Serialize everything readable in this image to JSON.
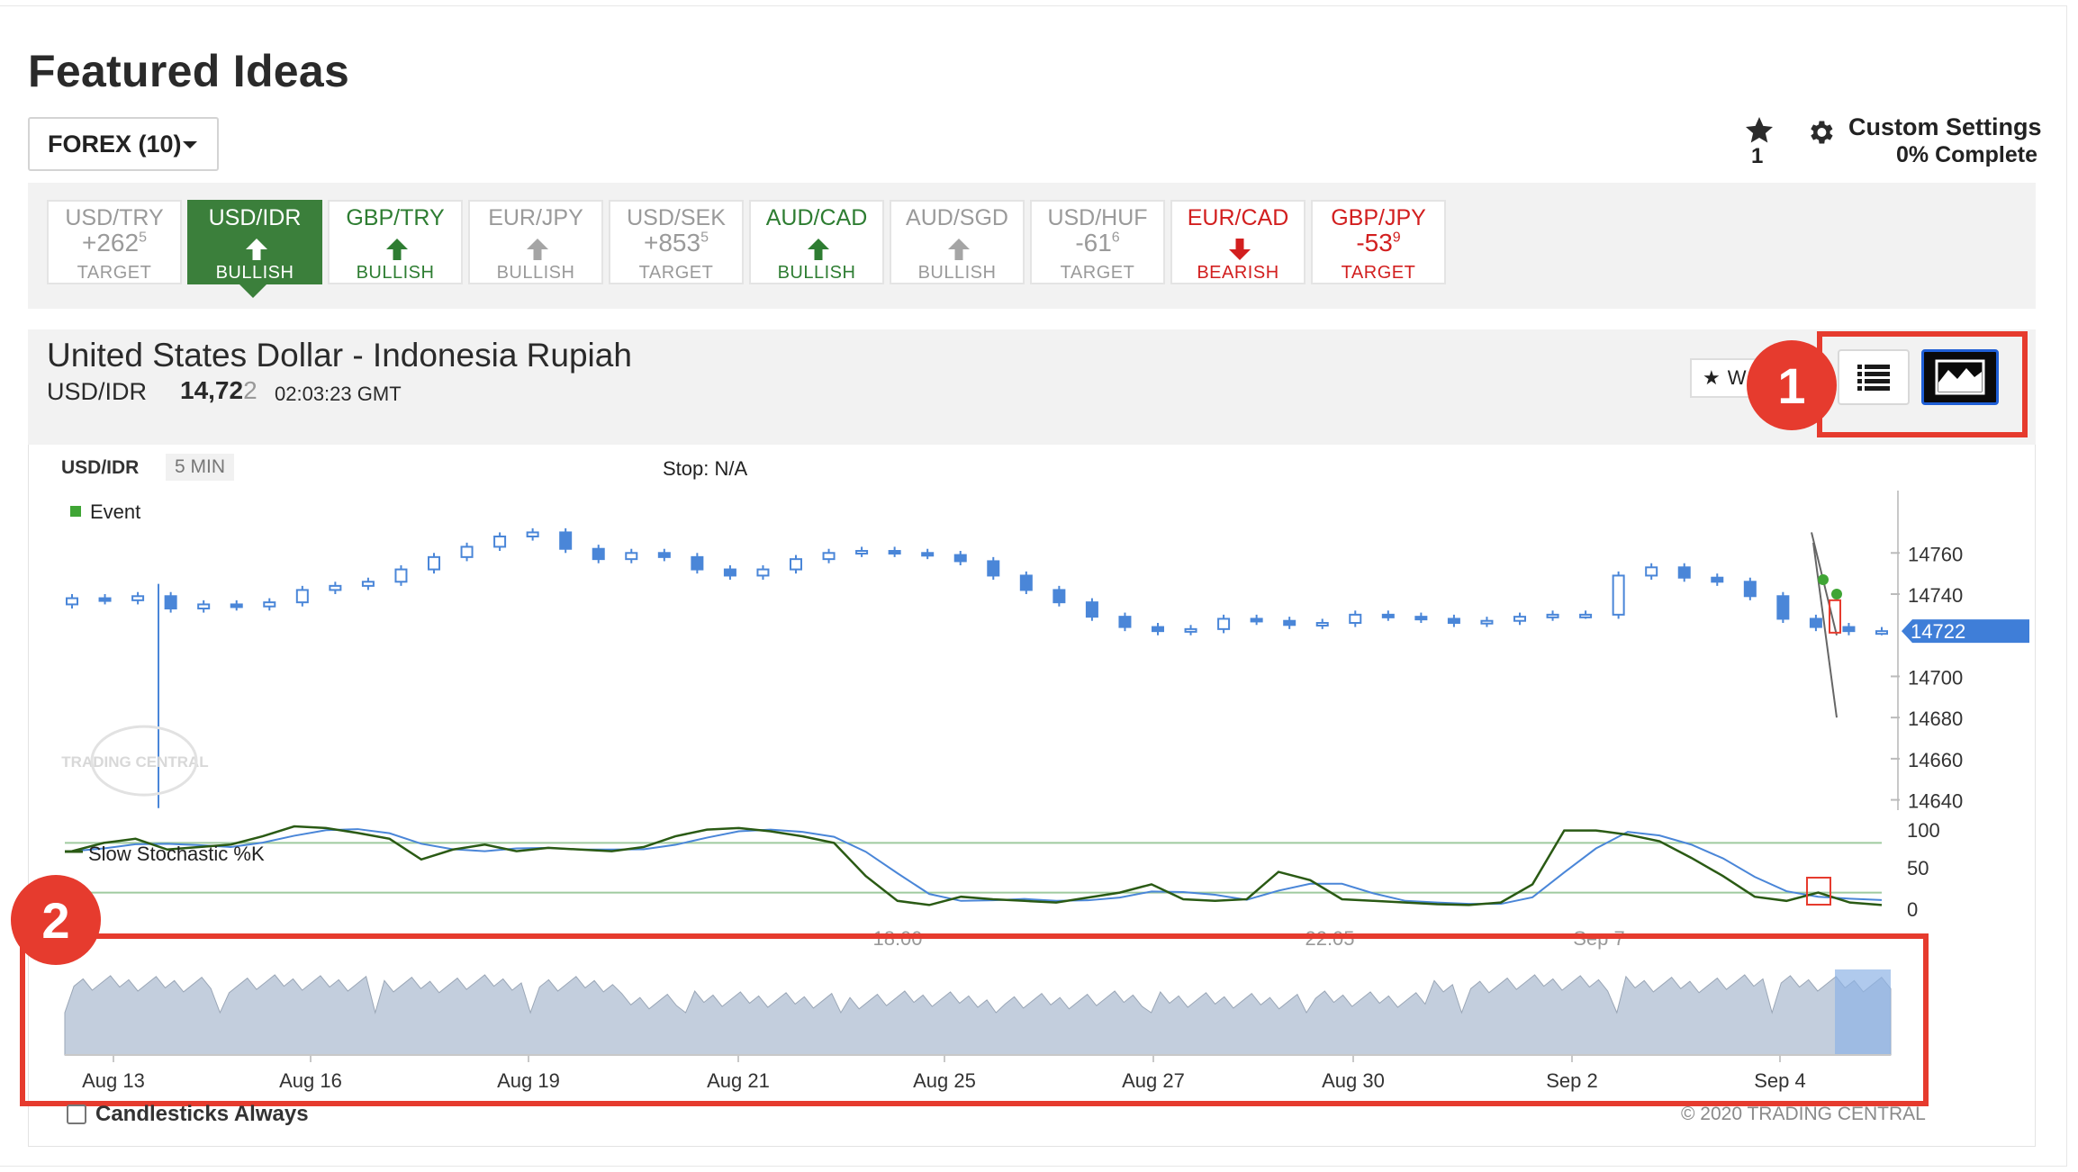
{
  "page": {
    "title": "Featured Ideas",
    "dropdown_label": "FOREX (10)",
    "watchlist_count": "1",
    "custom_settings_label": "Custom Settings",
    "complete_label": "0% Complete"
  },
  "tiles": [
    {
      "symbol": "USD/TRY",
      "value": "+262",
      "sup": "5",
      "label": "TARGET",
      "kind": "target",
      "style": "grey"
    },
    {
      "symbol": "USD/IDR",
      "value": "",
      "sup": "",
      "label": "BULLISH",
      "kind": "up",
      "style": "active"
    },
    {
      "symbol": "GBP/TRY",
      "value": "",
      "sup": "",
      "label": "BULLISH",
      "kind": "up",
      "style": "green"
    },
    {
      "symbol": "EUR/JPY",
      "value": "",
      "sup": "",
      "label": "BULLISH",
      "kind": "up",
      "style": "grey"
    },
    {
      "symbol": "USD/SEK",
      "value": "+853",
      "sup": "5",
      "label": "TARGET",
      "kind": "target",
      "style": "grey"
    },
    {
      "symbol": "AUD/CAD",
      "value": "",
      "sup": "",
      "label": "BULLISH",
      "kind": "up",
      "style": "green"
    },
    {
      "symbol": "AUD/SGD",
      "value": "",
      "sup": "",
      "label": "BULLISH",
      "kind": "up",
      "style": "grey"
    },
    {
      "symbol": "USD/HUF",
      "value": "-61",
      "sup": "6",
      "label": "TARGET",
      "kind": "target",
      "style": "grey"
    },
    {
      "symbol": "EUR/CAD",
      "value": "",
      "sup": "",
      "label": "BEARISH",
      "kind": "down",
      "style": "red"
    },
    {
      "symbol": "GBP/JPY",
      "value": "-53",
      "sup": "9",
      "label": "TARGET",
      "kind": "target",
      "style": "red"
    }
  ],
  "instrument": {
    "name": "United States Dollar - Indonesia Rupiah",
    "symbol": "USD/IDR",
    "price_main": "14,72",
    "price_tail": "2",
    "time": "02:03:23 GMT",
    "watch_label": "W"
  },
  "callouts": {
    "one": "1",
    "two": "2"
  },
  "chart_labels": {
    "symbol": "USD/IDR",
    "timeframe": "5 MIN",
    "stop": "Stop: N/A",
    "event_legend": "Event",
    "stoch_legend": "Slow Stochastic %K",
    "watermark": "TRADING CENTRAL",
    "candlesticks_label": "Candlesticks Always",
    "copyright": "© 2020 TRADING CENTRAL"
  },
  "colors": {
    "bullish_green": "#2e7d32",
    "bearish_red": "#d21f1f",
    "candle_blue": "#4a86d8",
    "callout_red": "#e63b2e",
    "navigator_fill": "#c3cedd"
  },
  "chart_data": [
    {
      "type": "candlestick",
      "title": "",
      "series": [
        {
          "name": "USD/IDR",
          "last": 14722
        }
      ],
      "y_ticks": [
        14760,
        14740,
        14722,
        14700,
        14680,
        14660,
        14640
      ],
      "ylim": [
        14635,
        14775
      ],
      "current_price_label": "14722",
      "x_ticks_partial": [
        "18:00",
        "22:05",
        "Sep 7"
      ],
      "legend": [
        "Event"
      ],
      "closes": [
        14738,
        14737,
        14739,
        14733,
        14735,
        14734,
        14736,
        14742,
        14744,
        14746,
        14752,
        14758,
        14763,
        14768,
        14770,
        14762,
        14757,
        14760,
        14758,
        14752,
        14749,
        14752,
        14757,
        14760,
        14761,
        14760,
        14759,
        14756,
        14749,
        14742,
        14736,
        14729,
        14724,
        14722,
        14723,
        14728,
        14727,
        14725,
        14726,
        14730,
        14729,
        14728,
        14726,
        14727,
        14729,
        14730,
        14730,
        14749,
        14753,
        14748,
        14746,
        14739,
        14728,
        14724,
        14722,
        14722
      ]
    },
    {
      "type": "line",
      "title": "",
      "series": [
        {
          "name": "Slow Stochastic %K"
        }
      ],
      "y_ticks": [
        100,
        50,
        0
      ],
      "ylim": [
        0,
        100
      ],
      "values": [
        70,
        80,
        85,
        72,
        75,
        78,
        88,
        100,
        98,
        92,
        85,
        60,
        72,
        78,
        70,
        74,
        72,
        70,
        75,
        88,
        96,
        98,
        94,
        88,
        80,
        40,
        10,
        5,
        15,
        12,
        10,
        8,
        14,
        20,
        30,
        12,
        10,
        12,
        45,
        35,
        12,
        10,
        8,
        6,
        5,
        8,
        30,
        95,
        95,
        90,
        82,
        62,
        40,
        15,
        10,
        20,
        8,
        5
      ]
    },
    {
      "type": "area",
      "title": "",
      "x_ticks": [
        "Aug 13",
        "Aug 16",
        "Aug 19",
        "Aug 21",
        "Aug 25",
        "Aug 27",
        "Aug 30",
        "Sep 2",
        "Sep 4"
      ]
    }
  ]
}
